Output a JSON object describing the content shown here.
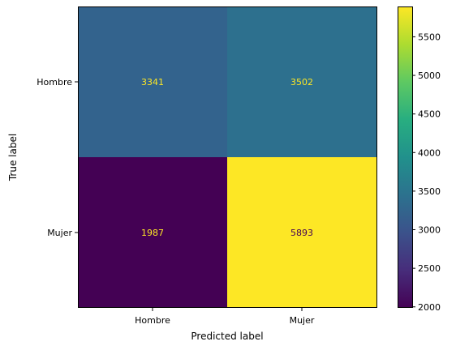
{
  "chart_data": {
    "type": "heatmap",
    "title": "",
    "xlabel": "Predicted label",
    "ylabel": "True label",
    "x_categories": [
      "Hombre",
      "Mujer"
    ],
    "y_categories": [
      "Hombre",
      "Mujer"
    ],
    "values": [
      [
        3341,
        3502
      ],
      [
        1987,
        5893
      ]
    ],
    "colormap": "viridis",
    "colorbar": {
      "range": [
        1987,
        5893
      ],
      "ticks": [
        2000,
        2500,
        3000,
        3500,
        4000,
        4500,
        5000,
        5500
      ]
    },
    "cell_text_colors": [
      [
        "#fde725",
        "#fde725"
      ],
      [
        "#fde725",
        "#440154"
      ]
    ],
    "cell_colors": [
      [
        "#33638d",
        "#2d708e"
      ],
      [
        "#440154",
        "#fde725"
      ]
    ]
  }
}
